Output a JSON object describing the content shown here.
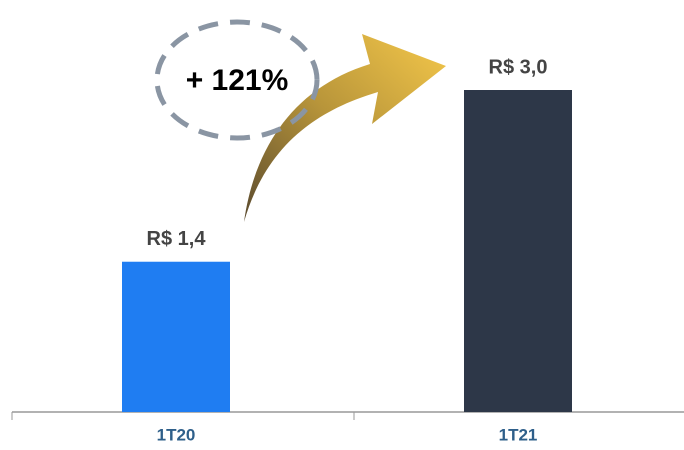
{
  "chart_data": {
    "type": "bar",
    "categories": [
      "1T20",
      "1T21"
    ],
    "values": [
      1.4,
      3.0
    ],
    "value_labels": [
      "R$ 1,4",
      "R$ 3,0"
    ],
    "colors": [
      "#1f7df2",
      "#2d3748"
    ],
    "annotation": "+ 121%"
  }
}
